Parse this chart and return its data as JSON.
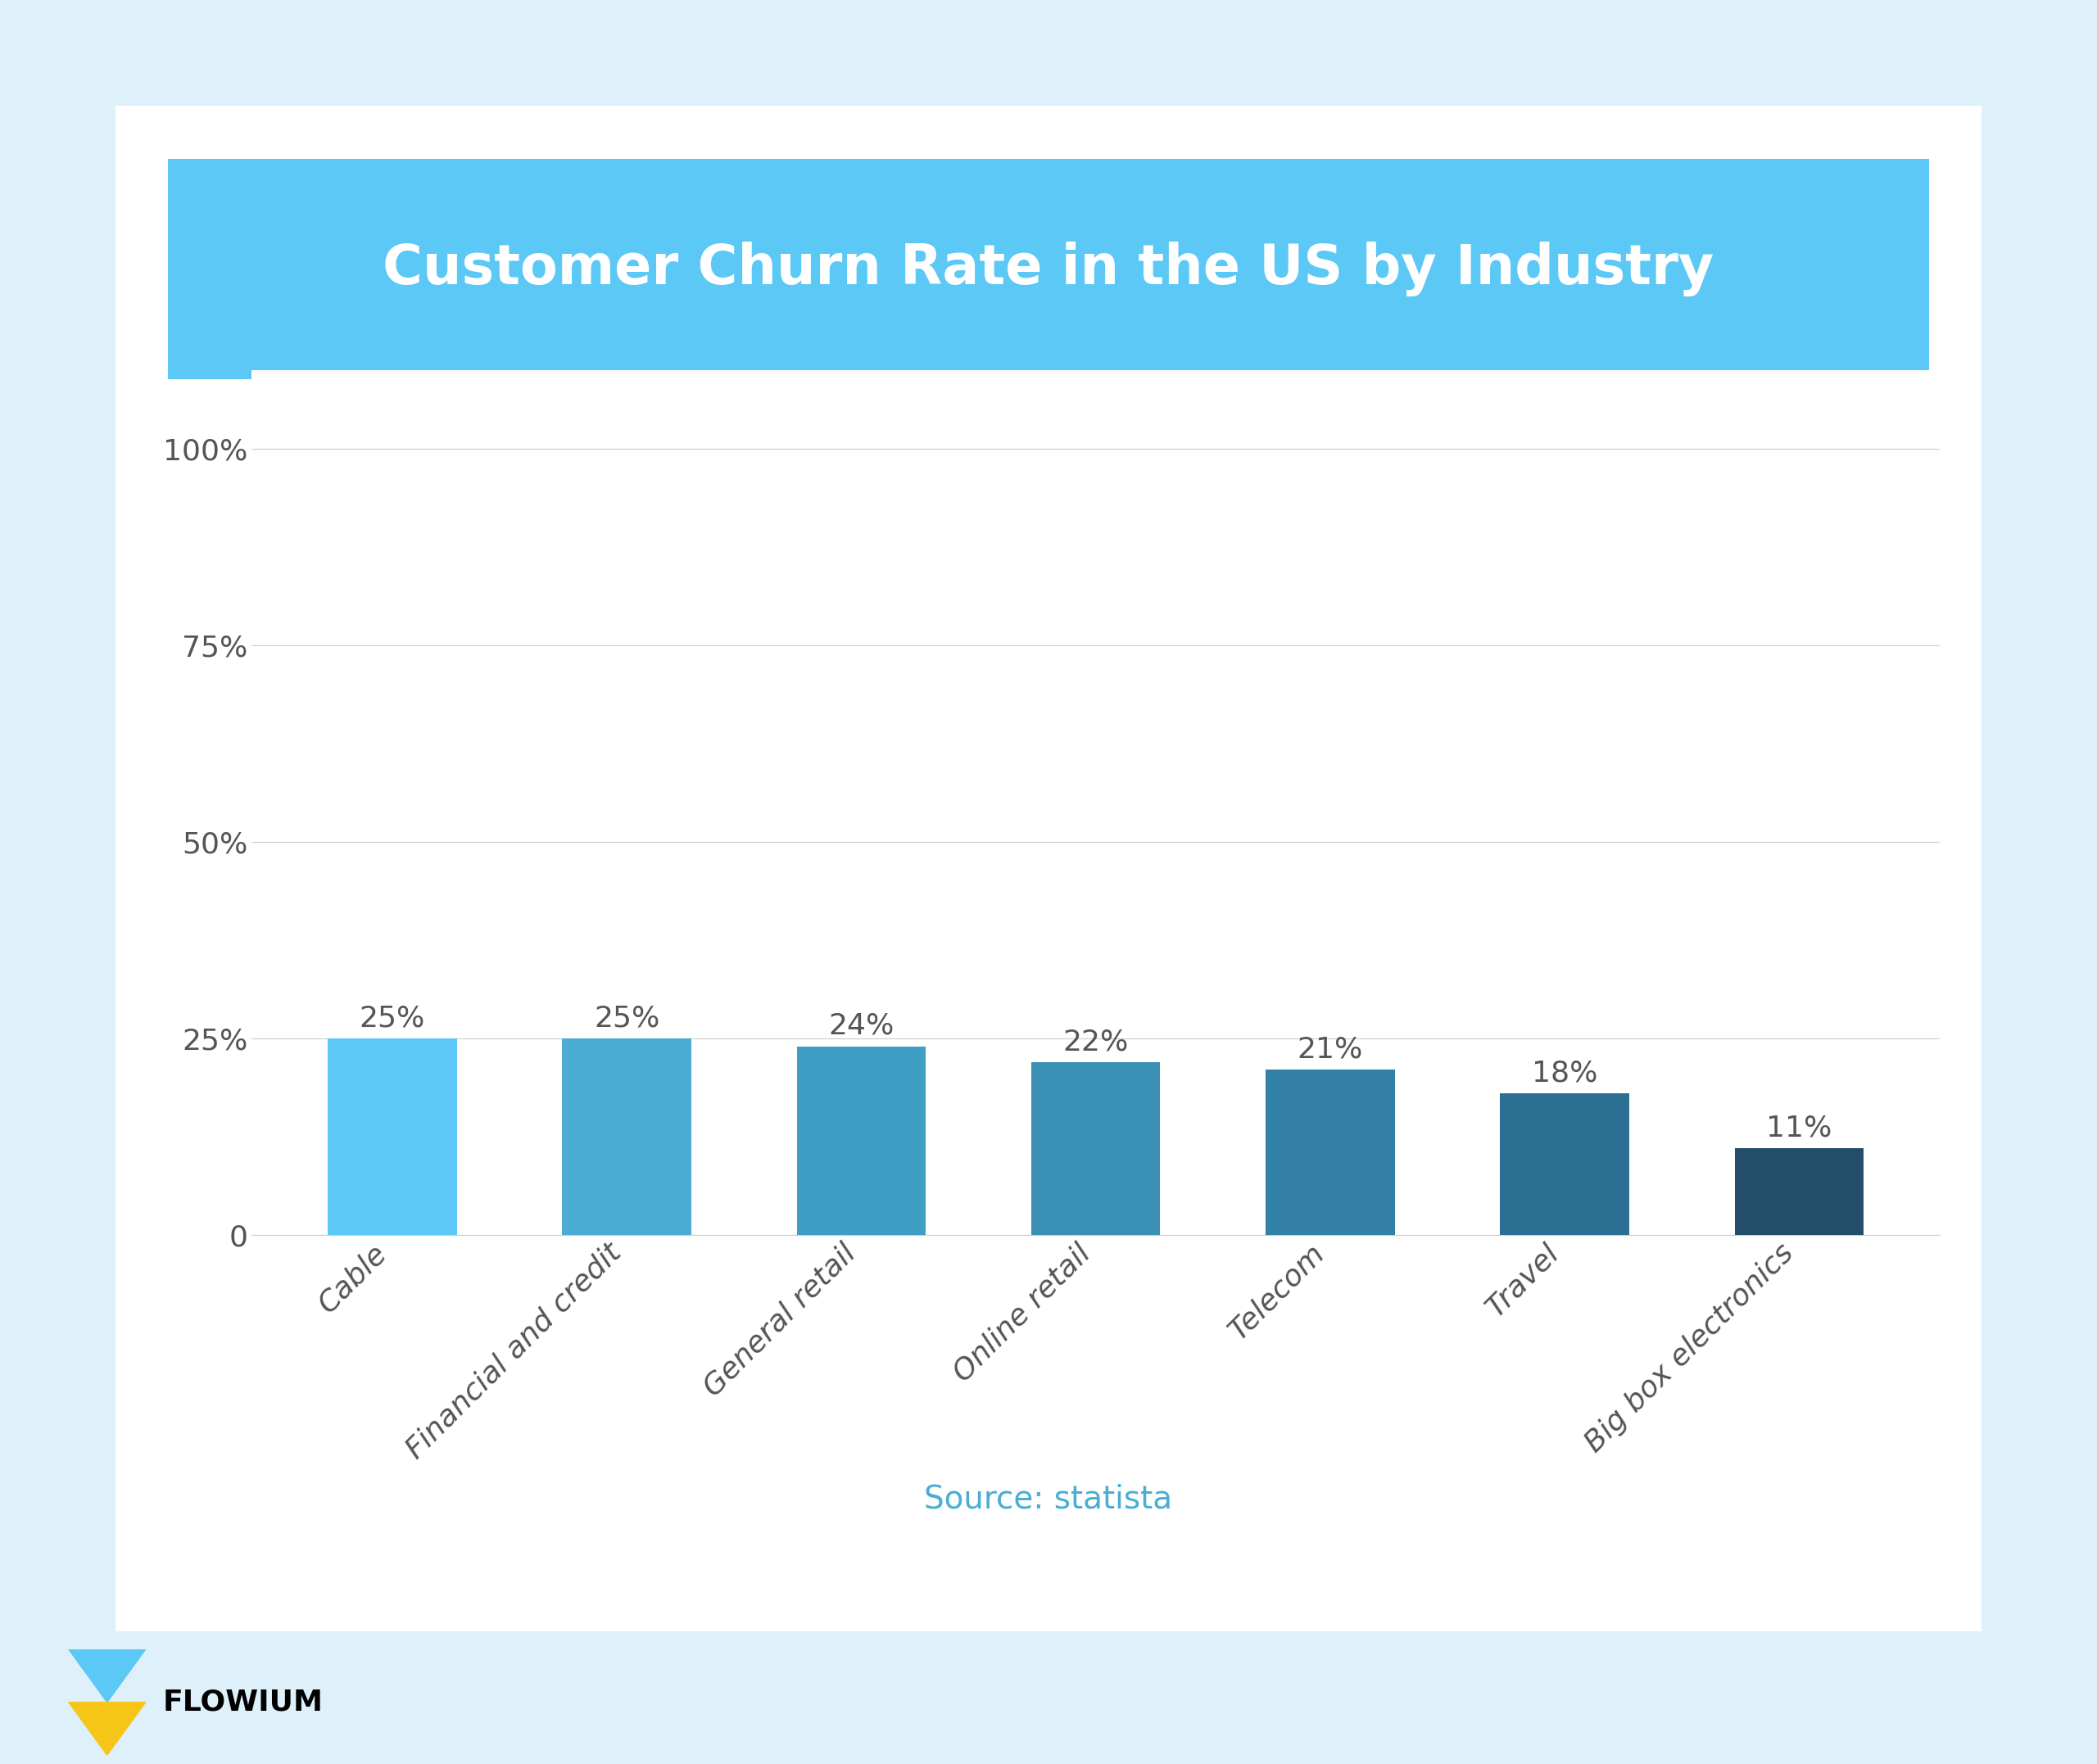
{
  "title": "Customer Churn Rate in the US by Industry",
  "categories": [
    "Cable",
    "Financial and credit",
    "General retail",
    "Online retail",
    "Telecom",
    "Travel",
    "Big box electronics"
  ],
  "values": [
    25,
    25,
    24,
    22,
    21,
    18,
    11
  ],
  "bar_colors": [
    "#5BC8F5",
    "#4BADD4",
    "#3F9EC4",
    "#3A8FB5",
    "#3280A5",
    "#2B6F93",
    "#234E6A"
  ],
  "value_labels": [
    "25%",
    "25%",
    "24%",
    "22%",
    "21%",
    "18%",
    "11%"
  ],
  "yticks": [
    0,
    25,
    50,
    75,
    100
  ],
  "ytick_labels": [
    "0",
    "25%",
    "50%",
    "75%",
    "100%"
  ],
  "ylim": [
    0,
    110
  ],
  "source_text": "Source: statista",
  "source_color": "#4BADD4",
  "title_bg_color": "#5BC8F5",
  "title_text_color": "#FFFFFF",
  "card_bg_color": "#FFFFFF",
  "outer_bg_color": "#DEF0FA",
  "axis_label_color": "#555555",
  "grid_color": "#CCCCCC",
  "title_fontsize": 48,
  "tick_fontsize": 26,
  "bar_label_fontsize": 26,
  "source_fontsize": 28,
  "xlabel_fontsize": 26
}
